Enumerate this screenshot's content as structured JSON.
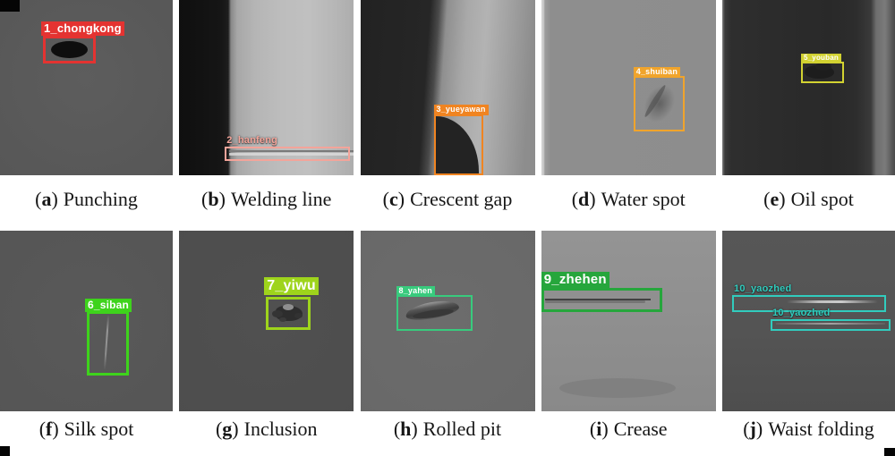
{
  "figure": {
    "description_visible_text_only": true,
    "punctuation": {
      "open_paren": "(",
      "close_paren": ")"
    }
  },
  "panels": [
    {
      "key": "a",
      "box_labels": [
        "1_chongkong"
      ],
      "box_color": "#e43331",
      "caption_letter": "a",
      "caption": "Punching"
    },
    {
      "key": "b",
      "box_labels": [
        "2_hanfeng"
      ],
      "box_color": "#f4a49a",
      "caption_letter": "b",
      "caption": "Welding line"
    },
    {
      "key": "c",
      "box_labels": [
        "3_yueyawan"
      ],
      "box_color": "#f08421",
      "caption_letter": "c",
      "caption": "Crescent gap"
    },
    {
      "key": "d",
      "box_labels": [
        "4_shuiban"
      ],
      "box_color": "#f0a42c",
      "caption_letter": "d",
      "caption": "Water spot"
    },
    {
      "key": "e",
      "box_labels": [
        "5_youban"
      ],
      "box_color": "#d2d231",
      "caption_letter": "e",
      "caption": "Oil spot"
    },
    {
      "key": "f",
      "box_labels": [
        "6_siban"
      ],
      "box_color": "#3ed31c",
      "caption_letter": "f",
      "caption": "Silk spot"
    },
    {
      "key": "g",
      "box_labels": [
        "7_yiwu"
      ],
      "box_color": "#9ed41c",
      "caption_letter": "g",
      "caption": "Inclusion"
    },
    {
      "key": "h",
      "box_labels": [
        "8_yahen"
      ],
      "box_color": "#38cb7d",
      "caption_letter": "h",
      "caption": "Rolled pit"
    },
    {
      "key": "i",
      "box_labels": [
        "9_zhehen"
      ],
      "box_color": "#26a63c",
      "caption_letter": "i",
      "caption": "Crease"
    },
    {
      "key": "j",
      "box_labels": [
        "10_yaozhed",
        "10_yaozhed"
      ],
      "box_color": "#31ccbe",
      "caption_letter": "j",
      "caption": "Waist folding"
    }
  ]
}
